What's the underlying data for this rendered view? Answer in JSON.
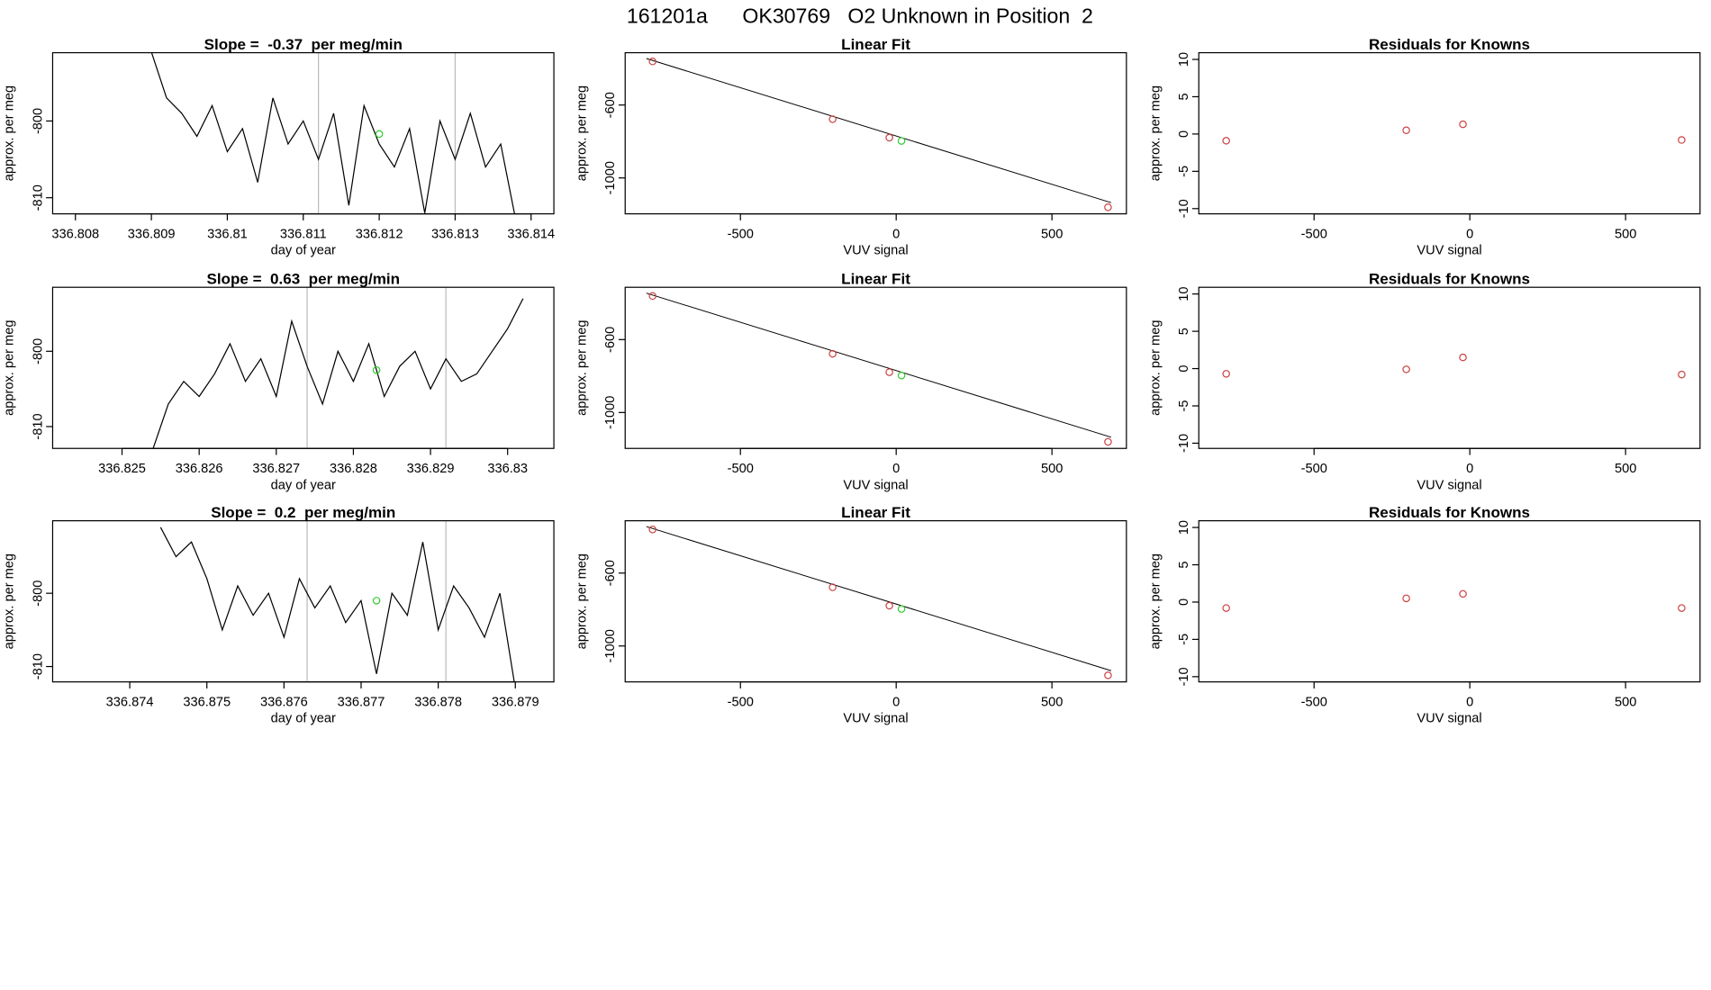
{
  "title": "161201a      OK30769   O2 Unknown in Position  2",
  "chart_data": [
    {
      "type": "line",
      "title": "Slope =  -0.37  per meg/min",
      "xlabel": "day of year",
      "ylabel": "approx. per meg",
      "color": "#000000",
      "x": [
        336.809,
        336.8092,
        336.8094,
        336.8096,
        336.8098,
        336.81,
        336.8102,
        336.8104,
        336.8106,
        336.8108,
        336.811,
        336.8112,
        336.8114,
        336.8116,
        336.8118,
        336.812,
        336.8122,
        336.8124,
        336.8126,
        336.8128,
        336.813,
        336.8132,
        336.8134,
        336.8136,
        336.8138
      ],
      "values": [
        -791,
        -797,
        -799,
        -802,
        -798,
        -804,
        -801,
        -808,
        -797,
        -803,
        -800,
        -805,
        -799,
        -811,
        -798,
        -803,
        -806,
        -801,
        -812,
        -800,
        -805,
        -799,
        -806,
        -803,
        -813
      ],
      "vlines": [
        336.8112,
        336.813
      ],
      "highlight": {
        "x": 336.812,
        "y": -801.7,
        "color": "#33cc33"
      },
      "xlim": [
        336.8077,
        336.8143
      ],
      "ylim": [
        -812.1,
        -791.1
      ],
      "xticks": [
        336.808,
        336.809,
        336.81,
        336.811,
        336.812,
        336.813,
        336.814
      ],
      "yticks": [
        -800,
        -810
      ]
    },
    {
      "type": "scatter",
      "title": "Linear Fit",
      "xlabel": "VUV signal",
      "ylabel": "approx. per meg",
      "color": "#cc4444",
      "x": [
        -782,
        -204,
        -22,
        680
      ],
      "values": [
        -361,
        -678,
        -779,
        -1161
      ],
      "highlight": {
        "x": 17,
        "y": -797,
        "color": "#33cc33"
      },
      "fit": {
        "intercept": -770,
        "slope": -0.53
      },
      "xlim": [
        -870,
        739
      ],
      "ylim": [
        -1197,
        -313
      ],
      "xticks": [
        -500,
        0,
        500
      ],
      "yticks": [
        -600,
        -1000
      ]
    },
    {
      "type": "scatter",
      "title": "Residuals for Knowns",
      "xlabel": "VUV signal",
      "ylabel": "approx. per meg",
      "color": "#cc4444",
      "x": [
        -782,
        -204,
        -22,
        680
      ],
      "values": [
        -0.9,
        0.5,
        1.3,
        -0.8
      ],
      "xlim": [
        -870,
        739
      ],
      "ylim": [
        -10.7,
        10.9
      ],
      "xticks": [
        -500,
        0,
        500
      ],
      "yticks": [
        -10,
        -5,
        0,
        5,
        10
      ]
    },
    {
      "type": "line",
      "title": "Slope =  0.63  per meg/min",
      "xlabel": "day of year",
      "ylabel": "approx. per meg",
      "color": "#000000",
      "x": [
        336.8254,
        336.8256,
        336.8258,
        336.826,
        336.8262,
        336.8264,
        336.8266,
        336.8268,
        336.827,
        336.8272,
        336.8274,
        336.8276,
        336.8278,
        336.828,
        336.8282,
        336.8284,
        336.8286,
        336.8288,
        336.829,
        336.8292,
        336.8294,
        336.8296,
        336.8298,
        336.83,
        336.8302
      ],
      "values": [
        -813,
        -807,
        -804,
        -806,
        -803,
        -799,
        -804,
        -801,
        -806,
        -796,
        -802,
        -807,
        -800,
        -804,
        -799,
        -806,
        -802,
        -800,
        -805,
        -801,
        -804,
        -803,
        -800,
        -797,
        -793
      ],
      "vlines": [
        336.8274,
        336.8292
      ],
      "highlight": {
        "x": 336.8283,
        "y": -802.5,
        "color": "#33cc33"
      },
      "xlim": [
        336.8241,
        336.8306
      ],
      "ylim": [
        -812.9,
        -791.5
      ],
      "xticks": [
        336.825,
        336.826,
        336.827,
        336.828,
        336.829,
        336.83
      ],
      "yticks": [
        -800,
        -810
      ]
    },
    {
      "type": "scatter",
      "title": "Linear Fit",
      "xlabel": "VUV signal",
      "ylabel": "approx. per meg",
      "color": "#cc4444",
      "x": [
        -782,
        -204,
        -22,
        680
      ],
      "values": [
        -361,
        -678,
        -779,
        -1161
      ],
      "highlight": {
        "x": 17,
        "y": -797,
        "color": "#33cc33"
      },
      "fit": {
        "intercept": -770,
        "slope": -0.53
      },
      "xlim": [
        -870,
        739
      ],
      "ylim": [
        -1197,
        -313
      ],
      "xticks": [
        -500,
        0,
        500
      ],
      "yticks": [
        -600,
        -1000
      ]
    },
    {
      "type": "scatter",
      "title": "Residuals for Knowns",
      "xlabel": "VUV signal",
      "ylabel": "approx. per meg",
      "color": "#cc4444",
      "x": [
        -782,
        -204,
        -22,
        680
      ],
      "values": [
        -0.7,
        -0.1,
        1.5,
        -0.8
      ],
      "xlim": [
        -870,
        739
      ],
      "ylim": [
        -10.7,
        10.9
      ],
      "xticks": [
        -500,
        0,
        500
      ],
      "yticks": [
        -10,
        -5,
        0,
        5,
        10
      ]
    },
    {
      "type": "line",
      "title": "Slope =  0.2  per meg/min",
      "xlabel": "day of year",
      "ylabel": "approx. per meg",
      "color": "#000000",
      "x": [
        336.8744,
        336.8746,
        336.8748,
        336.875,
        336.8752,
        336.8754,
        336.8756,
        336.8758,
        336.876,
        336.8762,
        336.8764,
        336.8766,
        336.8768,
        336.877,
        336.8772,
        336.8774,
        336.8776,
        336.8778,
        336.878,
        336.8782,
        336.8784,
        336.8786,
        336.8788,
        336.879
      ],
      "values": [
        -791,
        -795,
        -793,
        -798,
        -805,
        -799,
        -803,
        -800,
        -806,
        -798,
        -802,
        -799,
        -804,
        -801,
        -811,
        -800,
        -803,
        -793,
        -805,
        -799,
        -802,
        -806,
        -800,
        -813
      ],
      "vlines": [
        336.8763,
        336.8781
      ],
      "highlight": {
        "x": 336.8772,
        "y": -801,
        "color": "#33cc33"
      },
      "xlim": [
        336.873,
        336.8795
      ],
      "ylim": [
        -812.1,
        -790.1
      ],
      "xticks": [
        336.874,
        336.875,
        336.876,
        336.877,
        336.878,
        336.879
      ],
      "yticks": [
        -800,
        -810
      ]
    },
    {
      "type": "scatter",
      "title": "Linear Fit",
      "xlabel": "VUV signal",
      "ylabel": "approx. per meg",
      "color": "#cc4444",
      "x": [
        -782,
        -204,
        -22,
        680
      ],
      "values": [
        -361,
        -678,
        -779,
        -1161
      ],
      "highlight": {
        "x": 17,
        "y": -797,
        "color": "#33cc33"
      },
      "fit": {
        "intercept": -770,
        "slope": -0.53
      },
      "xlim": [
        -870,
        739
      ],
      "ylim": [
        -1197,
        -313
      ],
      "xticks": [
        -500,
        0,
        500
      ],
      "yticks": [
        -600,
        -1000
      ]
    },
    {
      "type": "scatter",
      "title": "Residuals for Knowns",
      "xlabel": "VUV signal",
      "ylabel": "approx. per meg",
      "color": "#cc4444",
      "x": [
        -782,
        -204,
        -22,
        680
      ],
      "values": [
        -0.8,
        0.5,
        1.1,
        -0.8
      ],
      "xlim": [
        -870,
        739
      ],
      "ylim": [
        -10.7,
        10.9
      ],
      "xticks": [
        -500,
        0,
        500
      ],
      "yticks": [
        -10,
        -5,
        0,
        5,
        10
      ]
    }
  ]
}
